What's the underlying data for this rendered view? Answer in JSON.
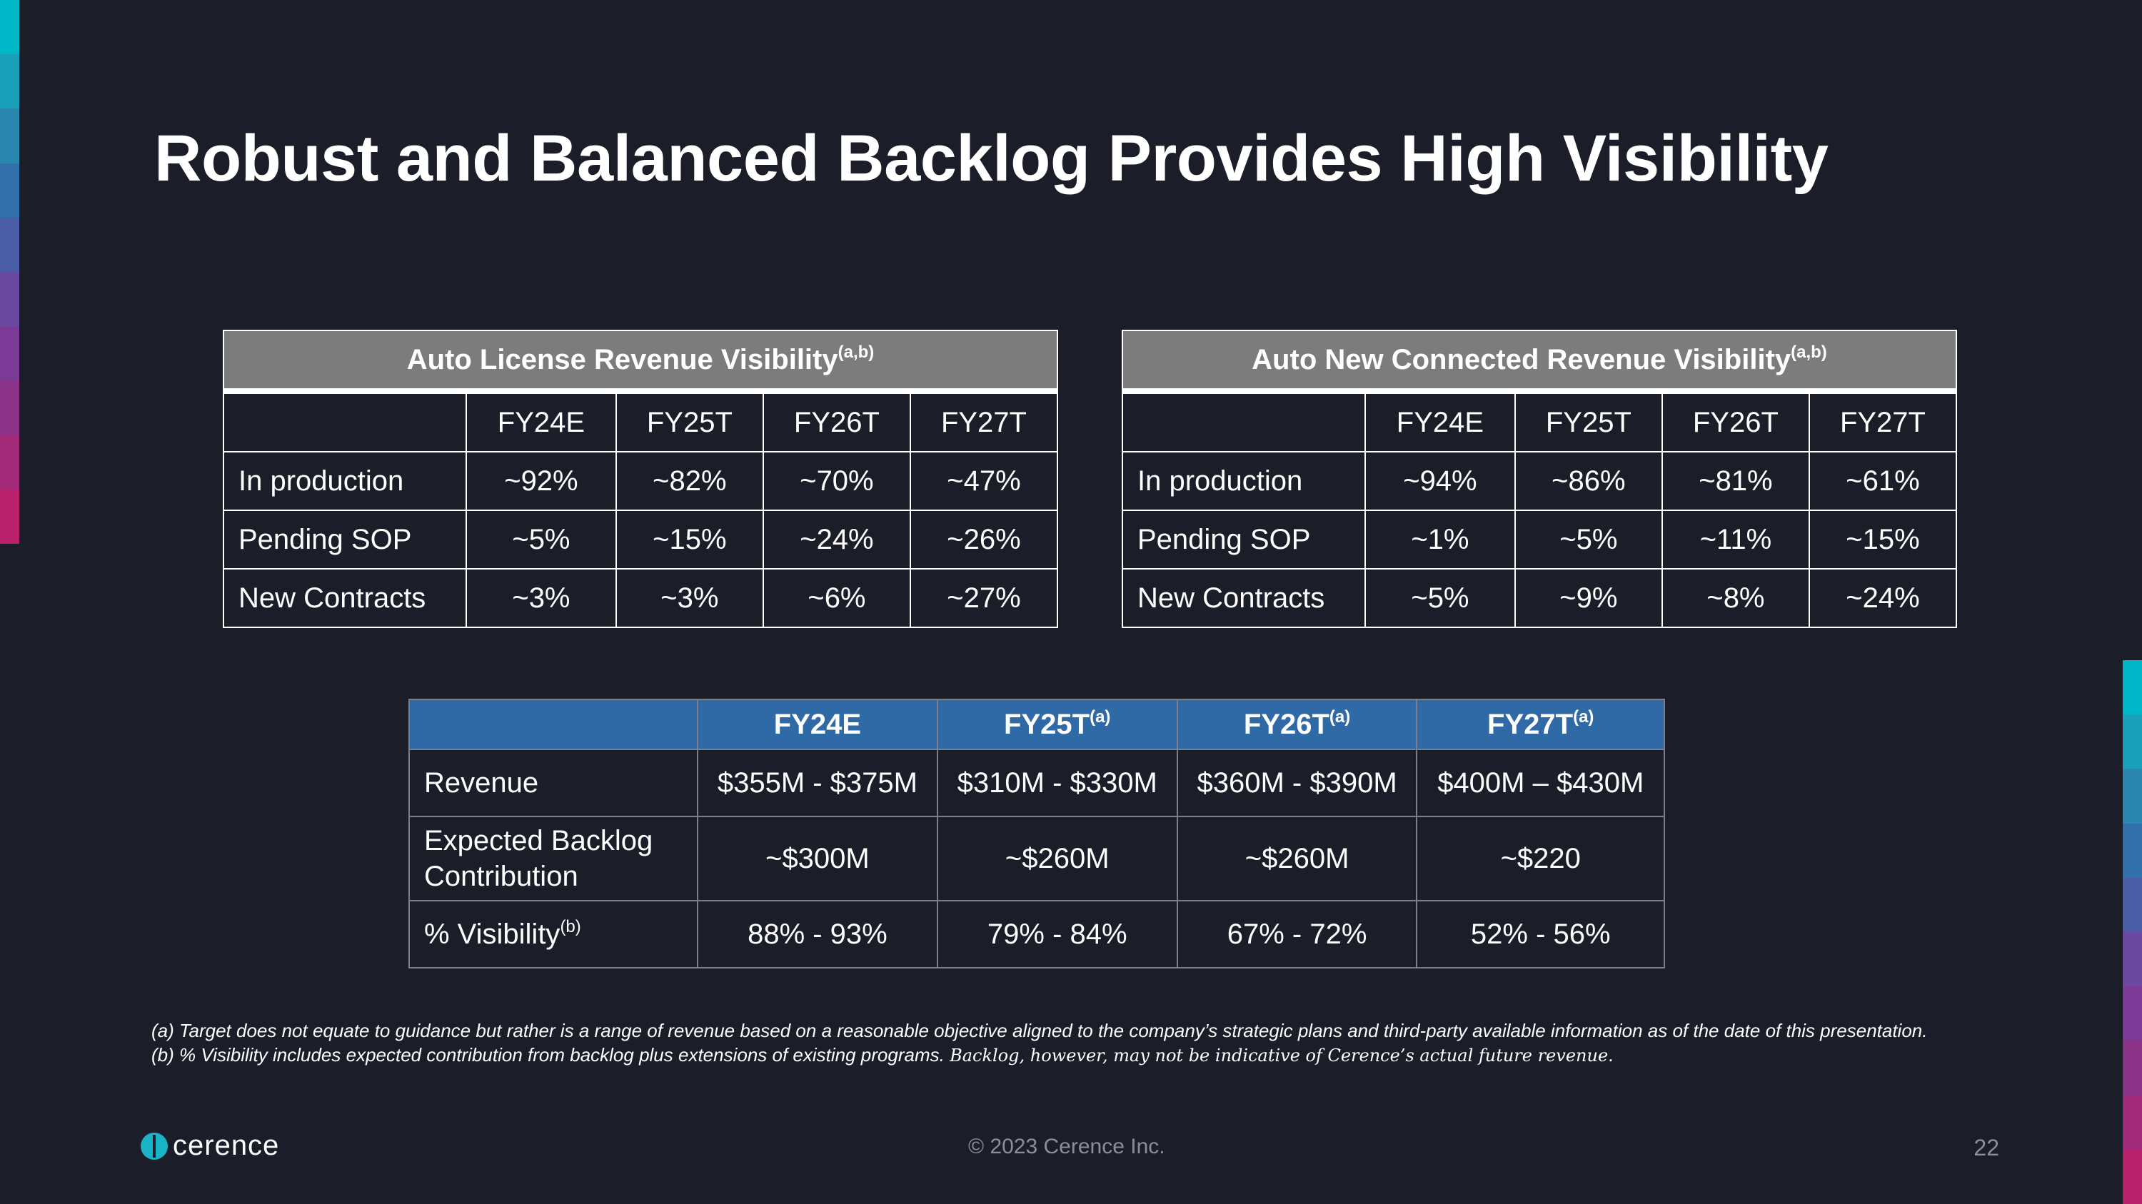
{
  "colors": {
    "background": "#1b1e29",
    "table_header_gray": "#7c7c7c",
    "table_header_blue": "#2f6aa6",
    "logo_teal": "#18b3c6",
    "accent_gradient": [
      "#00b7c7",
      "#1aa0b8",
      "#2b87b0",
      "#3170aa",
      "#4a5ea8",
      "#6a4aa0",
      "#7b3a95",
      "#8a3388",
      "#a02a78",
      "#b8206a"
    ]
  },
  "title": "Robust and Balanced Backlog Provides High Visibility",
  "license_table": {
    "title": "Auto License Revenue Visibility",
    "title_sup": "(a,b)",
    "columns": [
      "FY24E",
      "FY25T",
      "FY26T",
      "FY27T"
    ],
    "rows": [
      {
        "label": "In production",
        "values": [
          "~92%",
          "~82%",
          "~70%",
          "~47%"
        ]
      },
      {
        "label": "Pending SOP",
        "values": [
          "~5%",
          "~15%",
          "~24%",
          "~26%"
        ]
      },
      {
        "label": "New Contracts",
        "values": [
          "~3%",
          "~3%",
          "~6%",
          "~27%"
        ]
      }
    ]
  },
  "connected_table": {
    "title": "Auto New Connected Revenue Visibility",
    "title_sup": "(a,b)",
    "columns": [
      "FY24E",
      "FY25T",
      "FY26T",
      "FY27T"
    ],
    "rows": [
      {
        "label": "In production",
        "values": [
          "~94%",
          "~86%",
          "~81%",
          "~61%"
        ]
      },
      {
        "label": "Pending SOP",
        "values": [
          "~1%",
          "~5%",
          "~11%",
          "~15%"
        ]
      },
      {
        "label": "New Contracts",
        "values": [
          "~5%",
          "~9%",
          "~8%",
          "~24%"
        ]
      }
    ]
  },
  "revenue_table": {
    "columns": [
      {
        "label": "FY24E",
        "sup": ""
      },
      {
        "label": "FY25T",
        "sup": "(a)"
      },
      {
        "label": "FY26T",
        "sup": "(a)"
      },
      {
        "label": "FY27T",
        "sup": "(a)"
      }
    ],
    "rows": [
      {
        "label": "Revenue",
        "label_sup": "",
        "values": [
          "$355M - $375M",
          "$310M - $330M",
          "$360M - $390M",
          "$400M – $430M"
        ]
      },
      {
        "label": "Expected Backlog Contribution",
        "label_sup": "",
        "values": [
          "~$300M",
          "~$260M",
          "~$260M",
          "~$220"
        ]
      },
      {
        "label": "% Visibility",
        "label_sup": "(b)",
        "values": [
          "88% - 93%",
          "79% - 84%",
          "67% - 72%",
          "52% - 56%"
        ]
      }
    ]
  },
  "footnotes": {
    "a": "(a) Target does not equate to guidance but rather is a range of revenue based on a reasonable objective aligned to the company’s strategic plans and third-party available information as of the date of this presentation.",
    "b": "(b) % Visibility includes expected contribution from backlog plus extensions of existing programs.",
    "b_tail": "Backlog, however, may not be indicative of Cerence’s actual future revenue."
  },
  "footer": {
    "logo_text": "cerence",
    "copyright": "© 2023 Cerence Inc.",
    "page_number": "22"
  }
}
